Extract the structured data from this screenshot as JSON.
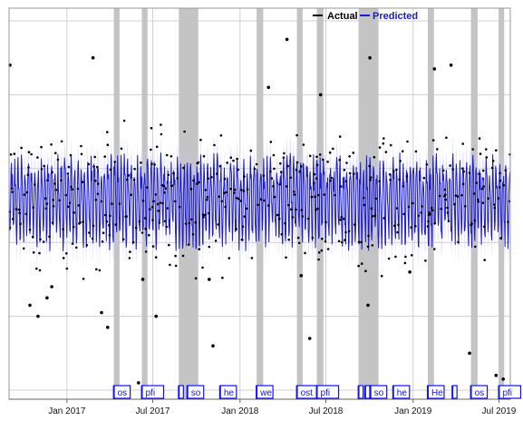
{
  "chart_data": {
    "type": "line",
    "title": "",
    "xlabel": "",
    "ylabel": "",
    "x_ticks": [
      "Jan 2017",
      "Jul 2017",
      "Jan 2018",
      "Jul 2018",
      "Jan 2019",
      "Jul 2019"
    ],
    "x_range": [
      "2016-09-01",
      "2019-07-25"
    ],
    "y_range": [
      0,
      100
    ],
    "grid": true,
    "legend": {
      "placement": "top-right",
      "entries": [
        "Actual",
        "Predicted"
      ]
    },
    "colors": {
      "actual": "#000000",
      "predicted": "#1a1ad8",
      "band": "#c8c8ff",
      "shade": "#c4c4c4",
      "grid": "#d0d0d0",
      "flag_text": "#1010ff",
      "flag_fill": "#ffffff"
    },
    "series": [
      {
        "name": "Actual",
        "style": "points"
      },
      {
        "name": "Predicted",
        "style": "line with confidence band"
      }
    ],
    "shaded_periods": [
      {
        "start": "2017-04-10",
        "end": "2017-04-22"
      },
      {
        "start": "2017-06-08",
        "end": "2017-06-20"
      },
      {
        "start": "2017-08-25",
        "end": "2017-10-05"
      },
      {
        "start": "2018-02-05",
        "end": "2018-02-19"
      },
      {
        "start": "2018-05-01",
        "end": "2018-05-13"
      },
      {
        "start": "2018-06-12",
        "end": "2018-06-26"
      },
      {
        "start": "2018-09-08",
        "end": "2018-10-20"
      },
      {
        "start": "2019-02-01",
        "end": "2019-02-14"
      },
      {
        "start": "2019-05-03",
        "end": "2019-05-17"
      },
      {
        "start": "2019-07-01",
        "end": "2019-07-12"
      }
    ],
    "event_flags": [
      {
        "label": "os",
        "date": "2017-04-10"
      },
      {
        "label": "pfi",
        "date": "2017-06-08"
      },
      {
        "label": "",
        "date": "2017-08-25"
      },
      {
        "label": "so",
        "date": "2017-09-12"
      },
      {
        "label": "he",
        "date": "2017-11-20"
      },
      {
        "label": "we",
        "date": "2018-02-05"
      },
      {
        "label": "ost",
        "date": "2018-05-01"
      },
      {
        "label": "pfi",
        "date": "2018-06-12"
      },
      {
        "label": "",
        "date": "2018-09-08"
      },
      {
        "label": "",
        "date": "2018-09-22"
      },
      {
        "label": "so",
        "date": "2018-10-03"
      },
      {
        "label": "he",
        "date": "2018-11-20"
      },
      {
        "label": "He",
        "date": "2019-02-01"
      },
      {
        "label": "",
        "date": "2019-03-25"
      },
      {
        "label": "os",
        "date": "2019-05-03"
      },
      {
        "label": "pfi",
        "date": "2019-07-01"
      }
    ],
    "predicted_level": {
      "mean": 53,
      "amplitude": 10,
      "band_width": 5
    },
    "actual_outliers": [
      {
        "date": "2016-09-03",
        "value": 88
      },
      {
        "date": "2016-10-15",
        "value": 23
      },
      {
        "date": "2016-11-01",
        "value": 20
      },
      {
        "date": "2016-11-20",
        "value": 25
      },
      {
        "date": "2016-11-30",
        "value": 28
      },
      {
        "date": "2017-02-25",
        "value": 90
      },
      {
        "date": "2017-03-15",
        "value": 21
      },
      {
        "date": "2017-03-28",
        "value": 17
      },
      {
        "date": "2017-06-01",
        "value": 2
      },
      {
        "date": "2017-06-10",
        "value": 30
      },
      {
        "date": "2017-07-08",
        "value": 20
      },
      {
        "date": "2017-10-28",
        "value": 30
      },
      {
        "date": "2017-11-05",
        "value": 12
      },
      {
        "date": "2018-03-02",
        "value": 82
      },
      {
        "date": "2018-04-10",
        "value": 95
      },
      {
        "date": "2018-05-10",
        "value": 31
      },
      {
        "date": "2018-05-28",
        "value": 14
      },
      {
        "date": "2018-06-20",
        "value": 80
      },
      {
        "date": "2018-09-28",
        "value": 23
      },
      {
        "date": "2018-10-02",
        "value": 90
      },
      {
        "date": "2018-12-25",
        "value": 32
      },
      {
        "date": "2019-02-15",
        "value": 87
      },
      {
        "date": "2019-03-22",
        "value": 88
      },
      {
        "date": "2019-04-30",
        "value": 10
      },
      {
        "date": "2019-06-25",
        "value": 4
      },
      {
        "date": "2019-07-10",
        "value": 3
      }
    ]
  }
}
